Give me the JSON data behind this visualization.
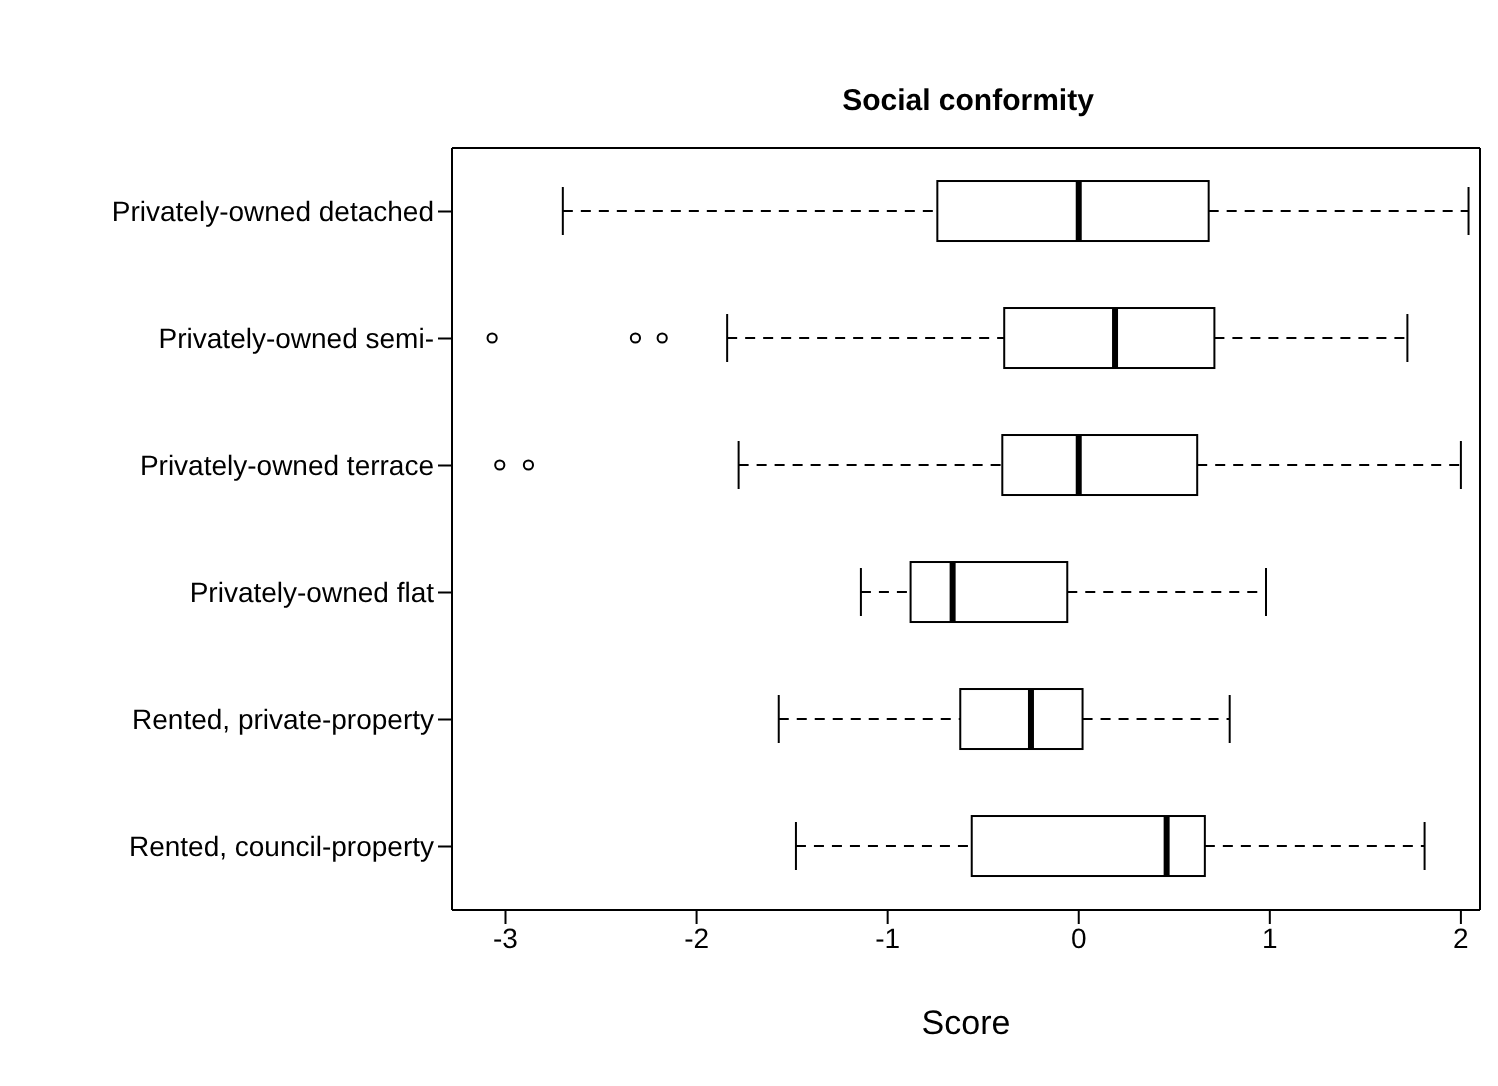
{
  "chart_data": {
    "type": "box",
    "title": "Social conformity",
    "xlabel": "Score",
    "orientation": "horizontal",
    "categories": [
      "Privately-owned detached",
      "Privately-owned semi-",
      "Privately-owned terrace",
      "Privately-owned flat",
      "Rented, private-property",
      "Rented, council-property"
    ],
    "boxes": [
      {
        "low": -2.7,
        "q1": -0.74,
        "median": 0.0,
        "q3": 0.68,
        "high": 2.04
      },
      {
        "low": -1.84,
        "q1": -0.39,
        "median": 0.19,
        "q3": 0.71,
        "high": 1.72,
        "outliers": [
          -3.07,
          -2.32,
          -2.18
        ]
      },
      {
        "low": -1.78,
        "q1": -0.4,
        "median": 0.0,
        "q3": 0.62,
        "high": 2.0,
        "outliers": [
          -3.03,
          -2.88
        ]
      },
      {
        "low": -1.14,
        "q1": -0.88,
        "median": -0.66,
        "q3": -0.06,
        "high": 0.98
      },
      {
        "low": -1.57,
        "q1": -0.62,
        "median": -0.25,
        "q3": 0.02,
        "high": 0.79
      },
      {
        "low": -1.48,
        "q1": -0.56,
        "median": 0.46,
        "q3": 0.66,
        "high": 1.81
      }
    ],
    "xlim": [
      -3.28,
      2.1
    ],
    "xticks": [
      -3,
      -2,
      -1,
      0,
      1,
      2
    ],
    "grid": false,
    "legend": false
  }
}
